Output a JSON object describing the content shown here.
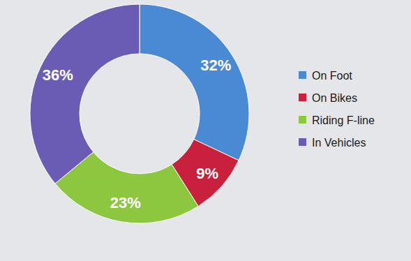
{
  "chart_data": {
    "type": "donut",
    "categories": [
      "On Foot",
      "On Bikes",
      "Riding F-line",
      "In Vehicles"
    ],
    "values": [
      32,
      9,
      23,
      36
    ],
    "value_labels": [
      "32%",
      "9%",
      "23%",
      "36%"
    ],
    "colors": [
      "#4a8ad4",
      "#c8203d",
      "#8dc63f",
      "#6a5bb5"
    ],
    "data_labels": true,
    "legend": "right"
  }
}
